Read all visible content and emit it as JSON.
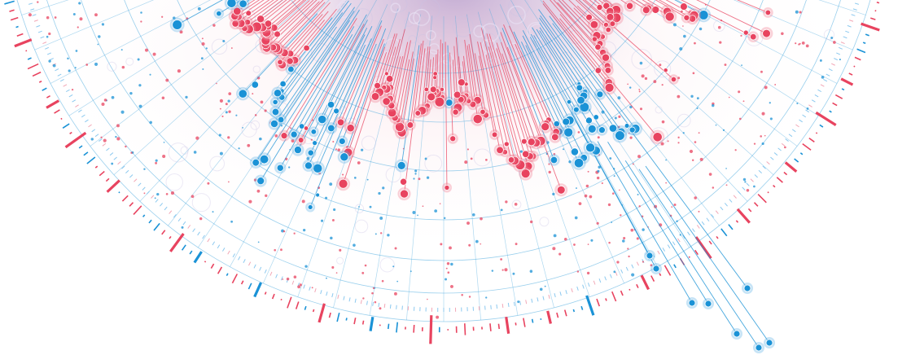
{
  "visualization": {
    "kind": "radial-data-art",
    "colors": {
      "red": "#e8435f",
      "red_light": "#f2a7b6",
      "red_halo": "#f07d92",
      "blue": "#1a92d6",
      "blue_light": "#8cc9ef",
      "blue_halo": "#5fb2e6",
      "grid": "#49a9de",
      "center_glow": "#b7a6d6",
      "background": "#ffffff"
    },
    "series": [
      {
        "name_shown": false,
        "color_key": "red",
        "share": 0.78
      },
      {
        "name_shown": false,
        "color_key": "blue",
        "share": 0.22
      }
    ],
    "outer_tick_lengths": [
      5,
      2,
      8,
      3,
      1,
      12,
      4,
      2,
      6,
      3,
      9,
      2,
      1,
      4,
      15,
      3,
      2,
      7,
      5,
      1,
      3,
      10,
      2,
      6,
      4,
      2,
      18,
      3,
      1,
      5,
      8,
      2,
      4,
      11,
      3,
      6,
      2,
      1,
      9,
      4,
      3,
      14,
      2,
      5,
      7,
      2,
      3,
      20,
      4,
      1,
      6,
      3,
      9,
      2,
      5,
      12,
      3,
      1,
      4,
      8,
      2,
      6,
      16,
      3,
      2,
      5,
      4,
      10,
      1,
      3,
      7,
      2,
      13,
      4,
      6,
      2,
      3,
      9,
      5,
      1,
      4,
      22,
      3,
      6,
      2,
      8,
      4,
      1,
      11,
      3,
      5,
      2,
      7,
      4,
      15,
      2,
      3,
      6,
      9,
      1,
      4,
      2,
      12,
      5,
      3,
      8,
      2,
      6,
      4,
      1,
      10,
      3,
      5,
      17,
      2,
      4,
      7,
      3,
      2,
      9,
      4,
      6,
      1,
      13,
      3,
      5,
      2,
      8,
      4,
      3,
      19,
      2,
      6,
      1,
      5,
      11,
      3,
      4,
      2,
      7,
      9,
      3,
      1,
      14,
      5,
      2,
      6,
      4,
      8,
      2,
      3,
      12,
      5,
      1,
      7,
      3,
      4,
      10,
      2,
      6
    ]
  }
}
